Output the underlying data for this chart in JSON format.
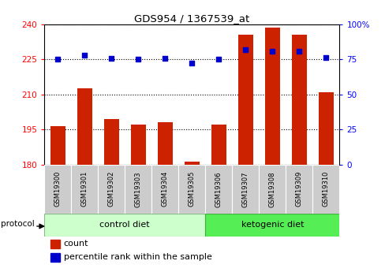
{
  "title": "GDS954 / 1367539_at",
  "samples": [
    "GSM19300",
    "GSM19301",
    "GSM19302",
    "GSM19303",
    "GSM19304",
    "GSM19305",
    "GSM19306",
    "GSM19307",
    "GSM19308",
    "GSM19309",
    "GSM19310"
  ],
  "counts": [
    196.5,
    212.5,
    199.5,
    197.0,
    198.0,
    181.2,
    197.0,
    235.5,
    238.5,
    235.5,
    211.0
  ],
  "percentiles": [
    75.0,
    78.0,
    76.0,
    75.0,
    76.0,
    72.5,
    75.5,
    82.0,
    81.0,
    81.0,
    76.5
  ],
  "control_color": "#ccffcc",
  "ketogenic_color": "#55ee55",
  "bar_color": "#cc2200",
  "dot_color": "#0000cc",
  "ylim_left": [
    180,
    240
  ],
  "ylim_right": [
    0,
    100
  ],
  "yticks_left": [
    180,
    195,
    210,
    225,
    240
  ],
  "yticks_right": [
    0,
    25,
    50,
    75,
    100
  ],
  "legend_count": "count",
  "legend_pct": "percentile rank within the sample",
  "protocol_label": "protocol",
  "bar_width": 0.55,
  "n_control": 6,
  "n_keto": 5
}
